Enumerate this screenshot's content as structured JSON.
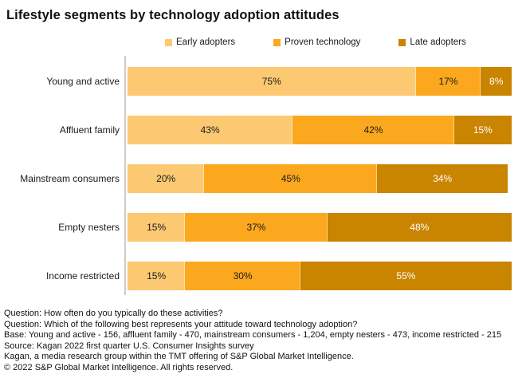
{
  "title": "Lifestyle segments by technology adoption attitudes",
  "colors": {
    "early_adopters": "#FCC972",
    "proven_technology": "#FCA81E",
    "late_adopters": "#C98400",
    "axis": "#CCCCCC",
    "label_dark": "#1A1A1A",
    "label_light": "#FFFFFF"
  },
  "legend": {
    "items": [
      {
        "label": "Early adopters",
        "color": "#FCC972"
      },
      {
        "label": "Proven technology",
        "color": "#FCA81E"
      },
      {
        "label": "Late adopters",
        "color": "#C98400"
      }
    ]
  },
  "chart_data": {
    "type": "bar",
    "orientation": "horizontal-stacked",
    "title": "Lifestyle segments by technology adoption attitudes",
    "categories": [
      "Young and active",
      "Affluent family",
      "Mainstream consumers",
      "Empty nesters",
      "Income restricted"
    ],
    "series": [
      {
        "name": "Early adopters",
        "values": [
          75,
          43,
          20,
          15,
          15
        ],
        "color": "#FCC972",
        "label_color": "#1A1A1A"
      },
      {
        "name": "Proven technology",
        "values": [
          17,
          42,
          45,
          37,
          30
        ],
        "color": "#FCA81E",
        "label_color": "#1A1A1A"
      },
      {
        "name": "Late adopters",
        "values": [
          8,
          15,
          34,
          48,
          55
        ],
        "color": "#C98400",
        "label_color": "#FFFFFF"
      }
    ],
    "value_suffix": "%",
    "xlim": [
      0,
      100
    ],
    "grid": false,
    "legend_position": "top"
  },
  "footer": {
    "lines": [
      "Question: How often do you typically do these activities?",
      "Question: Which of the following best represents your attitude toward technology adoption?",
      "Base: Young and active - 156, affluent family - 470, mainstream consumers - 1,204, empty nesters - 473, income restricted - 215",
      "Source: Kagan 2022 first quarter U.S. Consumer Insights survey",
      "Kagan, a media research group within the TMT offering of S&P Global Market Intelligence.",
      "© 2022 S&P Global Market Intelligence. All rights reserved."
    ]
  }
}
